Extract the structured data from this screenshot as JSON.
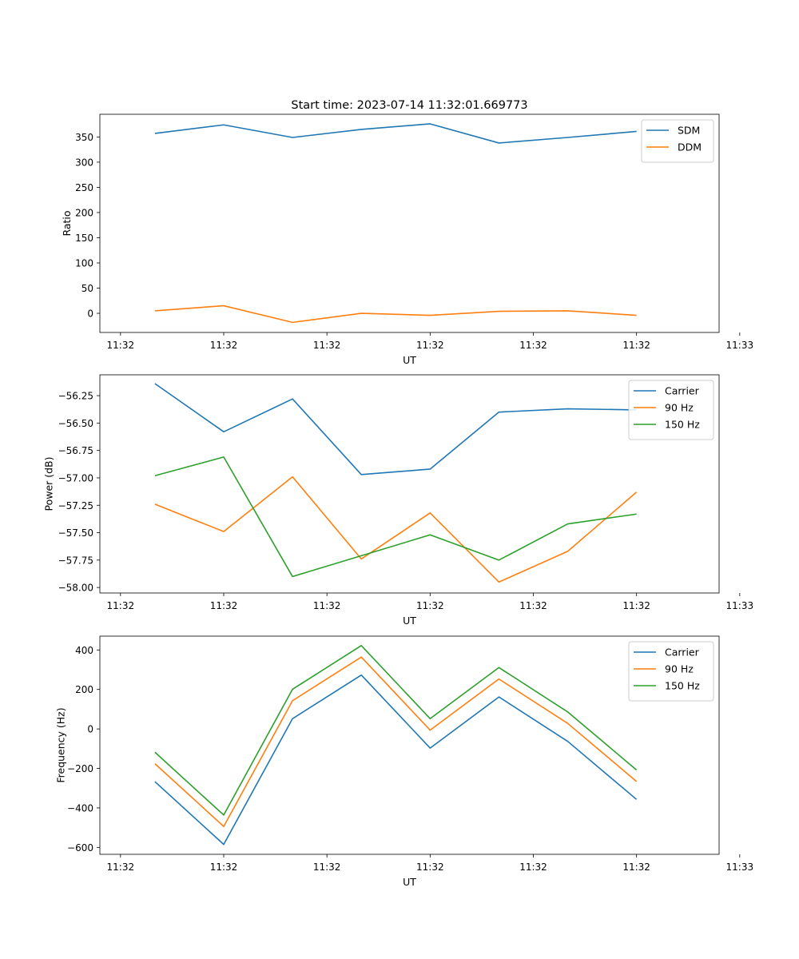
{
  "figure_title": "Start time: 2023-07-14 11:32:01.669773",
  "colors": {
    "blue": "#1f77b4",
    "orange": "#ff7f0e",
    "green": "#2ca02c"
  },
  "chart_data": [
    {
      "type": "line",
      "title": "Start time: 2023-07-14 11:32:01.669773",
      "xlabel": "UT",
      "ylabel": "Ratio",
      "x_tick_labels": [
        "11:32",
        "11:32",
        "11:32",
        "11:32",
        "11:32",
        "11:32",
        "11:33"
      ],
      "y_ticks": [
        0,
        50,
        100,
        150,
        200,
        250,
        300,
        350
      ],
      "y_tick_labels": [
        "0",
        "50",
        "100",
        "150",
        "200",
        "250",
        "300",
        "350"
      ],
      "ylim": [
        -38,
        395
      ],
      "x": [
        1,
        2,
        3,
        4,
        5,
        6,
        7,
        8
      ],
      "xlim": [
        0.2,
        9.2
      ],
      "x_ticks": [
        0.5,
        2.0,
        3.5,
        5.0,
        6.5,
        8.0,
        9.5
      ],
      "legend": "top-right",
      "series": [
        {
          "name": "SDM",
          "color": "blue",
          "values": [
            357,
            374,
            349,
            365,
            376,
            338,
            349,
            361
          ]
        },
        {
          "name": "DDM",
          "color": "orange",
          "values": [
            5,
            15,
            -18,
            0,
            -4,
            4,
            5,
            -4
          ]
        }
      ]
    },
    {
      "type": "line",
      "title": "",
      "xlabel": "UT",
      "ylabel": "Power (dB)",
      "x_tick_labels": [
        "11:32",
        "11:32",
        "11:32",
        "11:32",
        "11:32",
        "11:32",
        "11:33"
      ],
      "y_ticks": [
        -58.0,
        -57.75,
        -57.5,
        -57.25,
        -57.0,
        -56.75,
        -56.5,
        -56.25
      ],
      "y_tick_labels": [
        "−58.00",
        "−57.75",
        "−57.50",
        "−57.25",
        "−57.00",
        "−56.75",
        "−56.50",
        "−56.25"
      ],
      "ylim": [
        -58.05,
        -56.06
      ],
      "x": [
        1,
        2,
        3,
        4,
        5,
        6,
        7,
        8
      ],
      "xlim": [
        0.2,
        9.2
      ],
      "x_ticks": [
        0.5,
        2.0,
        3.5,
        5.0,
        6.5,
        8.0,
        9.5
      ],
      "legend": "top-right",
      "series": [
        {
          "name": "Carrier",
          "color": "blue",
          "values": [
            -56.14,
            -56.58,
            -56.28,
            -56.97,
            -56.92,
            -56.4,
            -56.37,
            -56.38
          ]
        },
        {
          "name": "90 Hz",
          "color": "orange",
          "values": [
            -57.24,
            -57.49,
            -56.99,
            -57.74,
            -57.32,
            -57.95,
            -57.67,
            -57.13
          ]
        },
        {
          "name": "150 Hz",
          "color": "green",
          "values": [
            -56.98,
            -56.81,
            -57.9,
            -57.71,
            -57.52,
            -57.75,
            -57.42,
            -57.33
          ]
        }
      ]
    },
    {
      "type": "line",
      "title": "",
      "xlabel": "UT",
      "ylabel": "Frequency (Hz)",
      "x_tick_labels": [
        "11:32",
        "11:32",
        "11:32",
        "11:32",
        "11:32",
        "11:32",
        "11:33"
      ],
      "y_ticks": [
        -600,
        -400,
        -200,
        0,
        200,
        400
      ],
      "y_tick_labels": [
        "−600",
        "−400",
        "−200",
        "0",
        "200",
        "400"
      ],
      "ylim": [
        -635,
        470
      ],
      "x": [
        1,
        2,
        3,
        4,
        5,
        6,
        7,
        8
      ],
      "xlim": [
        0.2,
        9.2
      ],
      "x_ticks": [
        0.5,
        2.0,
        3.5,
        5.0,
        6.5,
        8.0,
        9.5
      ],
      "legend": "top-right",
      "series": [
        {
          "name": "Carrier",
          "color": "blue",
          "values": [
            -267,
            -585,
            52,
            273,
            -97,
            162,
            -63,
            -357
          ]
        },
        {
          "name": "90 Hz",
          "color": "orange",
          "values": [
            -176,
            -494,
            143,
            364,
            -6,
            253,
            28,
            -266
          ]
        },
        {
          "name": "150 Hz",
          "color": "green",
          "values": [
            -118,
            -436,
            201,
            422,
            52,
            311,
            86,
            -208
          ]
        }
      ]
    }
  ]
}
